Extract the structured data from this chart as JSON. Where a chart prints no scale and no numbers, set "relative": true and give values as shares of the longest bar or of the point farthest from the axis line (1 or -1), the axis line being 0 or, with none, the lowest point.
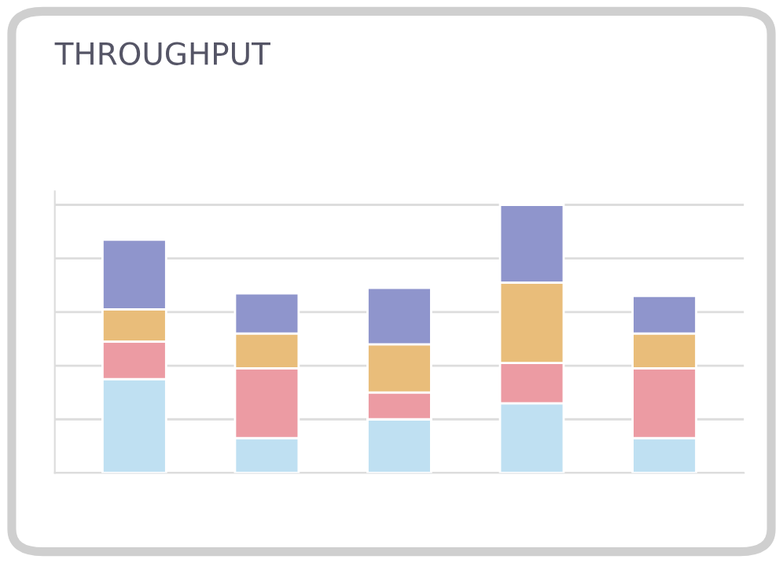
{
  "chart_data": {
    "type": "bar",
    "title": "THROUGHPUT",
    "categories": [
      null,
      null,
      null,
      null,
      null
    ],
    "stacked": true,
    "relative": true,
    "grid": "y",
    "tick_labels": false,
    "series": [
      {
        "color": "#bfe0f2",
        "values": [
          0.35,
          0.13,
          0.2,
          0.26,
          0.13
        ]
      },
      {
        "color": "#ec9ba3",
        "values": [
          0.14,
          0.26,
          0.1,
          0.15,
          0.26
        ]
      },
      {
        "color": "#e9bd7a",
        "values": [
          0.12,
          0.13,
          0.18,
          0.3,
          0.13
        ]
      },
      {
        "color": "#8f95cc",
        "values": [
          0.26,
          0.15,
          0.21,
          0.29,
          0.14
        ]
      }
    ]
  }
}
